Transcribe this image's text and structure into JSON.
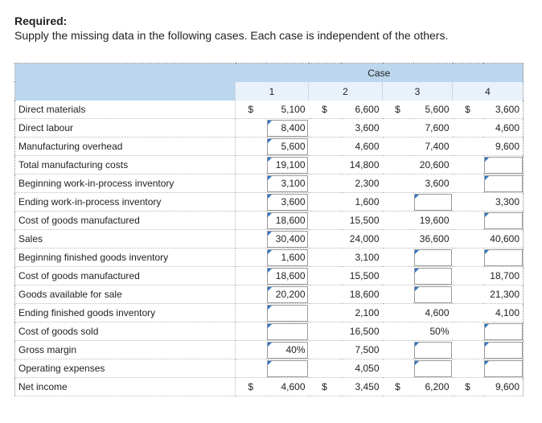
{
  "header": {
    "title": "Required:",
    "instruction": "Supply the missing data in the following cases. Each case is independent of the others."
  },
  "table": {
    "group_label": "Case",
    "cases": [
      "1",
      "2",
      "3",
      "4"
    ],
    "currency": "$",
    "rows": [
      {
        "label": "Direct materials",
        "dollar": true,
        "values": [
          "5,100",
          "6,600",
          "5,600",
          "3,600"
        ]
      },
      {
        "label": "Direct labour",
        "values": [
          "8,400",
          "3,600",
          "7,600",
          "4,600"
        ]
      },
      {
        "label": "Manufacturing overhead",
        "values": [
          "5,600",
          "4,600",
          "7,400",
          "9,600"
        ]
      },
      {
        "label": "Total manufacturing costs",
        "values": [
          "19,100",
          "14,800",
          "20,600",
          null
        ]
      },
      {
        "label": "Beginning work-in-process inventory",
        "values": [
          "3,100",
          "2,300",
          "3,600",
          null
        ]
      },
      {
        "label": "Ending work-in-process inventory",
        "values": [
          "3,600",
          "1,600",
          null,
          "3,300"
        ]
      },
      {
        "label": "Cost of goods manufactured",
        "values": [
          "18,600",
          "15,500",
          "19,600",
          null
        ]
      },
      {
        "label": "Sales",
        "values": [
          "30,400",
          "24,000",
          "36,600",
          "40,600"
        ]
      },
      {
        "label": "Beginning finished goods inventory",
        "values": [
          "1,600",
          "3,100",
          null,
          null
        ]
      },
      {
        "label": "Cost of goods manufactured",
        "values": [
          "18,600",
          "15,500",
          null,
          "18,700"
        ]
      },
      {
        "label": "Goods available for sale",
        "values": [
          "20,200",
          "18,600",
          null,
          "21,300"
        ]
      },
      {
        "label": "Ending finished goods inventory",
        "values": [
          null,
          "2,100",
          "4,600",
          "4,100"
        ]
      },
      {
        "label": "Cost of goods sold",
        "values": [
          null,
          "16,500",
          "50%",
          null
        ]
      },
      {
        "label": "Gross margin",
        "values": [
          "40%",
          "7,500",
          null,
          null
        ]
      },
      {
        "label": "Operating expenses",
        "values": [
          null,
          "4,050",
          null,
          null
        ]
      },
      {
        "label": "Net income",
        "dollar": true,
        "values": [
          "4,600",
          "3,450",
          "6,200",
          "9,600"
        ]
      }
    ]
  }
}
